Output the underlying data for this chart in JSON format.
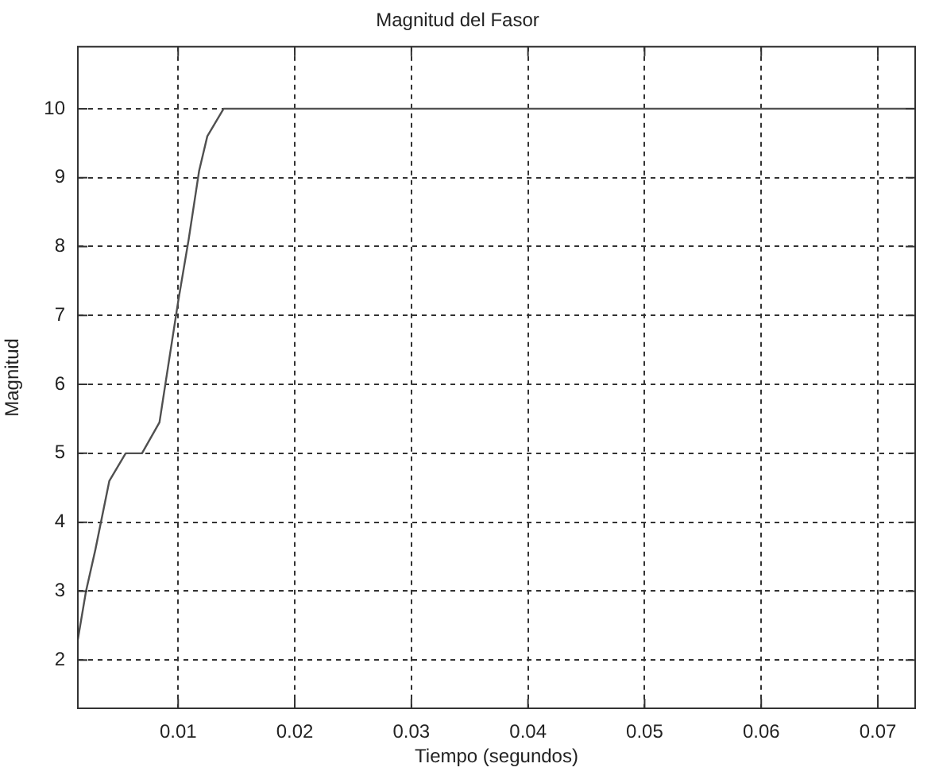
{
  "chart_data": {
    "type": "line",
    "title": "Magnitud del Fasor",
    "xlabel": "Tiempo (segundos)",
    "ylabel": "Magnitud",
    "x": [
      0.0014,
      0.0021,
      0.0029,
      0.0041,
      0.0055,
      0.0069,
      0.0084,
      0.0089,
      0.01,
      0.0109,
      0.0118,
      0.0125,
      0.0139,
      0.0732
    ],
    "values": [
      2.3,
      3.0,
      3.6,
      4.6,
      5.0,
      5.0,
      5.45,
      6.0,
      7.2,
      8.1,
      9.1,
      9.6,
      10.0,
      10.0
    ],
    "color": "#505050",
    "xlim": [
      0.0014,
      0.0732
    ],
    "ylim": [
      1.3,
      10.9
    ],
    "xticks": [
      0.01,
      0.02,
      0.03,
      0.04,
      0.05,
      0.06,
      0.07
    ],
    "yticks": [
      2,
      3,
      4,
      5,
      6,
      7,
      8,
      9,
      10
    ],
    "grid": true
  }
}
